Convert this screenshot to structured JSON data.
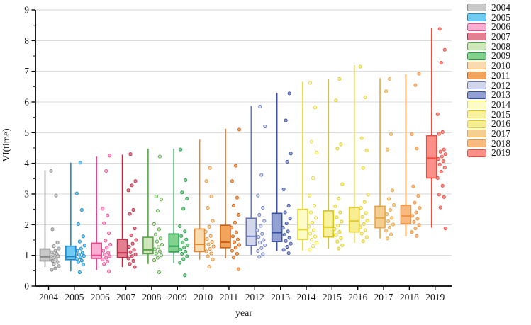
{
  "chart_data": {
    "type": "boxplot",
    "title": "",
    "xlabel": "year",
    "ylabel": "VI(time)",
    "ylim": [
      0,
      9
    ],
    "yticks": [
      0,
      1,
      2,
      3,
      4,
      5,
      6,
      7,
      8,
      9
    ],
    "minor_ytick_step": 0.5,
    "grid": "horizontal-light-gray",
    "legend_position": "right-outside",
    "categories": [
      "2004",
      "2005",
      "2006",
      "2007",
      "2008",
      "2009",
      "2010",
      "2011",
      "2012",
      "2013",
      "2014",
      "2015",
      "2016",
      "2017",
      "2018",
      "2019"
    ],
    "series": [
      {
        "label": "2004",
        "fill": "#c9c9c9",
        "stroke": "#8a8a8a",
        "whislo": 0.62,
        "q1": 0.82,
        "med": 0.95,
        "q3": 1.21,
        "whishi": 3.78,
        "points": [
          3.75,
          2.95,
          1.85,
          1.42,
          1.3,
          1.22,
          1.15,
          1.1,
          1.05,
          1.0,
          0.97,
          0.93,
          0.9,
          0.86,
          0.82,
          0.78,
          0.72,
          0.65,
          0.58,
          0.53
        ]
      },
      {
        "label": "2005",
        "fill": "#6fcbf3",
        "stroke": "#1f88c5",
        "whislo": 0.48,
        "q1": 0.86,
        "med": 0.96,
        "q3": 1.3,
        "whishi": 4.02,
        "points": [
          4.02,
          3.02,
          2.48,
          2.02,
          1.62,
          1.45,
          1.32,
          1.22,
          1.15,
          1.08,
          1.02,
          0.98,
          0.93,
          0.88,
          0.83,
          0.78,
          0.7,
          0.45
        ]
      },
      {
        "label": "2006",
        "fill": "#f9aed2",
        "stroke": "#e8478f",
        "whislo": 0.52,
        "q1": 0.9,
        "med": 1.0,
        "q3": 1.4,
        "whishi": 4.22,
        "points": [
          4.25,
          3.75,
          2.52,
          2.3,
          2.05,
          1.72,
          1.48,
          1.35,
          1.25,
          1.15,
          1.08,
          1.02,
          0.97,
          0.92,
          0.87,
          0.8,
          0.72,
          0.48
        ]
      },
      {
        "label": "2007",
        "fill": "#e27f90",
        "stroke": "#c02b45",
        "whislo": 0.62,
        "q1": 0.93,
        "med": 1.08,
        "q3": 1.52,
        "whishi": 4.28,
        "points": [
          4.3,
          3.42,
          3.28,
          3.12,
          2.48,
          2.35,
          1.88,
          1.65,
          1.5,
          1.38,
          1.28,
          1.18,
          1.1,
          1.03,
          0.97,
          0.9,
          0.82,
          0.72,
          0.62
        ]
      },
      {
        "label": "2008",
        "fill": "#d0e7bc",
        "stroke": "#55a546",
        "whislo": 0.72,
        "q1": 1.05,
        "med": 1.18,
        "q3": 1.59,
        "whishi": 4.48,
        "points": [
          4.22,
          2.92,
          2.82,
          2.45,
          2.02,
          1.85,
          1.68,
          1.55,
          1.45,
          1.35,
          1.27,
          1.2,
          1.13,
          1.06,
          1.0,
          0.92,
          0.84,
          0.45
        ]
      },
      {
        "label": "2009",
        "fill": "#82d18d",
        "stroke": "#279a4e",
        "whislo": 0.75,
        "q1": 1.11,
        "med": 1.3,
        "q3": 1.7,
        "whishi": 4.48,
        "points": [
          4.45,
          3.45,
          3.05,
          2.85,
          2.52,
          1.95,
          1.78,
          1.63,
          1.52,
          1.42,
          1.33,
          1.26,
          1.19,
          1.12,
          1.05,
          0.97,
          0.88,
          0.76,
          0.35
        ]
      },
      {
        "label": "2010",
        "fill": "#f8dcb0",
        "stroke": "#e2862f",
        "whislo": 0.86,
        "q1": 1.12,
        "med": 1.36,
        "q3": 1.86,
        "whishi": 4.78,
        "points": [
          3.85,
          3.42,
          2.92,
          2.55,
          2.12,
          1.93,
          1.77,
          1.63,
          1.53,
          1.44,
          1.36,
          1.29,
          1.21,
          1.13,
          1.06,
          0.97,
          0.87,
          0.63
        ]
      },
      {
        "label": "2011",
        "fill": "#f2a35c",
        "stroke": "#cf6016",
        "whislo": 0.9,
        "q1": 1.25,
        "med": 1.43,
        "q3": 1.98,
        "whishi": 5.13,
        "points": [
          5.1,
          3.92,
          3.42,
          2.88,
          2.62,
          2.32,
          2.07,
          1.9,
          1.75,
          1.62,
          1.52,
          1.43,
          1.34,
          1.25,
          1.15,
          1.05,
          0.93,
          0.55
        ]
      },
      {
        "label": "2012",
        "fill": "#d2d7eb",
        "stroke": "#6677bc",
        "whislo": 1.02,
        "q1": 1.32,
        "med": 1.62,
        "q3": 2.21,
        "whishi": 5.87,
        "points": [
          5.85,
          5.2,
          3.62,
          2.95,
          2.55,
          2.32,
          2.12,
          1.96,
          1.82,
          1.7,
          1.6,
          1.5,
          1.42,
          1.33,
          1.24,
          1.14,
          1.04,
          0.95
        ]
      },
      {
        "label": "2013",
        "fill": "#92a0d2",
        "stroke": "#3a50a1",
        "whislo": 1.15,
        "q1": 1.45,
        "med": 1.74,
        "q3": 2.37,
        "whishi": 6.3,
        "points": [
          6.28,
          5.4,
          4.32,
          4.05,
          3.15,
          2.62,
          2.4,
          2.2,
          2.04,
          1.9,
          1.78,
          1.67,
          1.57,
          1.47,
          1.38,
          1.28,
          1.18,
          1.07
        ]
      },
      {
        "label": "2014",
        "fill": "#fdfbc8",
        "stroke": "#e6d62a",
        "whislo": 1.15,
        "q1": 1.52,
        "med": 1.84,
        "q3": 2.5,
        "whishi": 6.66,
        "points": [
          6.62,
          5.82,
          4.7,
          4.35,
          3.52,
          2.95,
          2.62,
          2.4,
          2.22,
          2.07,
          1.94,
          1.82,
          1.71,
          1.61,
          1.51,
          1.41,
          1.3,
          1.18
        ]
      },
      {
        "label": "2015",
        "fill": "#f9f2a0",
        "stroke": "#dcc713",
        "whislo": 1.22,
        "q1": 1.6,
        "med": 1.92,
        "q3": 2.45,
        "whishi": 6.74,
        "points": [
          6.75,
          6.05,
          4.62,
          4.48,
          3.32,
          2.85,
          2.6,
          2.4,
          2.24,
          2.1,
          1.97,
          1.86,
          1.76,
          1.66,
          1.56,
          1.45,
          1.33,
          1.22
        ]
      },
      {
        "label": "2016",
        "fill": "#f7ee94",
        "stroke": "#e2cb2d",
        "whislo": 1.4,
        "q1": 1.76,
        "med": 2.12,
        "q3": 2.56,
        "whishi": 7.2,
        "points": [
          7.15,
          6.15,
          4.82,
          4.42,
          3.85,
          2.98,
          2.74,
          2.55,
          2.38,
          2.25,
          2.13,
          2.02,
          1.92,
          1.82,
          1.71,
          1.59,
          1.46
        ]
      },
      {
        "label": "2017",
        "fill": "#f4cf90",
        "stroke": "#eaa643",
        "whislo": 1.55,
        "q1": 1.9,
        "med": 2.22,
        "q3": 2.6,
        "whishi": 6.78,
        "points": [
          6.75,
          6.35,
          4.95,
          4.45,
          3.12,
          2.84,
          2.64,
          2.48,
          2.34,
          2.22,
          2.11,
          2.01,
          1.91,
          1.8,
          1.68,
          1.55
        ]
      },
      {
        "label": "2018",
        "fill": "#f8ba7e",
        "stroke": "#f0913d",
        "whislo": 1.62,
        "q1": 2.03,
        "med": 2.28,
        "q3": 2.63,
        "whishi": 6.9,
        "points": [
          6.92,
          6.55,
          4.95,
          4.48,
          3.25,
          2.94,
          2.72,
          2.55,
          2.4,
          2.29,
          2.19,
          2.09,
          1.99,
          1.88,
          1.76,
          1.63
        ]
      },
      {
        "label": "2019",
        "fill": "#fa9088",
        "stroke": "#f04a41",
        "whislo": 1.9,
        "q1": 3.52,
        "med": 4.17,
        "q3": 4.9,
        "whishi": 8.4,
        "points": [
          8.38,
          7.7,
          7.28,
          5.6,
          5.02,
          4.96,
          4.45,
          4.38,
          4.3,
          4.22,
          4.14,
          4.07,
          3.96,
          3.86,
          3.73,
          3.52,
          3.27,
          2.98,
          2.9,
          2.56,
          1.88
        ]
      }
    ]
  }
}
